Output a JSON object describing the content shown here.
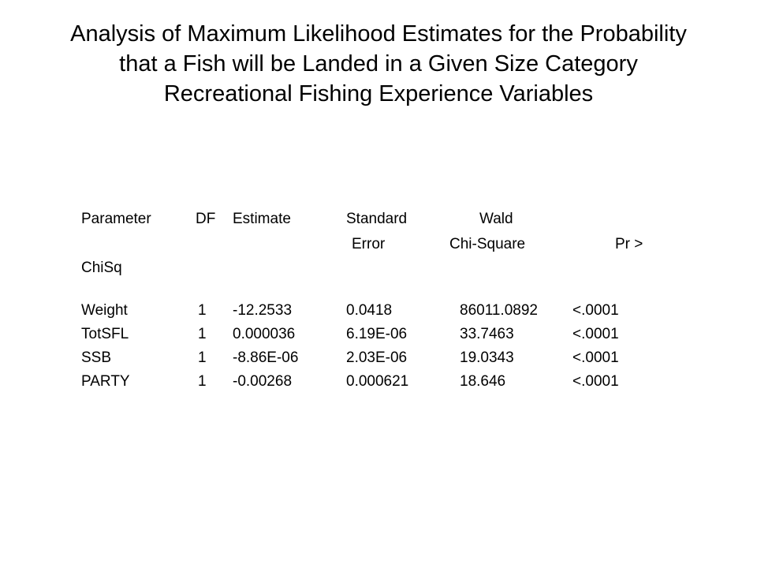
{
  "title": {
    "line1": "Analysis of Maximum Likelihood Estimates for the Probability",
    "line2": "that a Fish will be Landed in a Given Size Category",
    "line3": "Recreational Fishing Experience Variables"
  },
  "table": {
    "header": {
      "parameter": "Parameter",
      "df": "DF",
      "estimate": "Estimate",
      "standard": "Standard",
      "error": "Error",
      "wald": "Wald",
      "chi_square": "Chi-Square",
      "pr": "Pr >",
      "chisq": "ChiSq"
    },
    "rows": [
      {
        "parameter": "Weight",
        "df": "1",
        "estimate": "-12.2533",
        "std_error": "0.0418",
        "wald_chi_square": "86011.0892",
        "pr_chisq": "<.0001"
      },
      {
        "parameter": "TotSFL",
        "df": "1",
        "estimate": "0.000036",
        "std_error": "6.19E-06",
        "wald_chi_square": "33.7463",
        "pr_chisq": "<.0001"
      },
      {
        "parameter": "SSB",
        "df": "1",
        "estimate": "-8.86E-06",
        "std_error": "2.03E-06",
        "wald_chi_square": "19.0343",
        "pr_chisq": "<.0001"
      },
      {
        "parameter": "PARTY",
        "df": "1",
        "estimate": "-0.00268",
        "std_error": "0.000621",
        "wald_chi_square": "18.646",
        "pr_chisq": "<.0001"
      }
    ]
  }
}
